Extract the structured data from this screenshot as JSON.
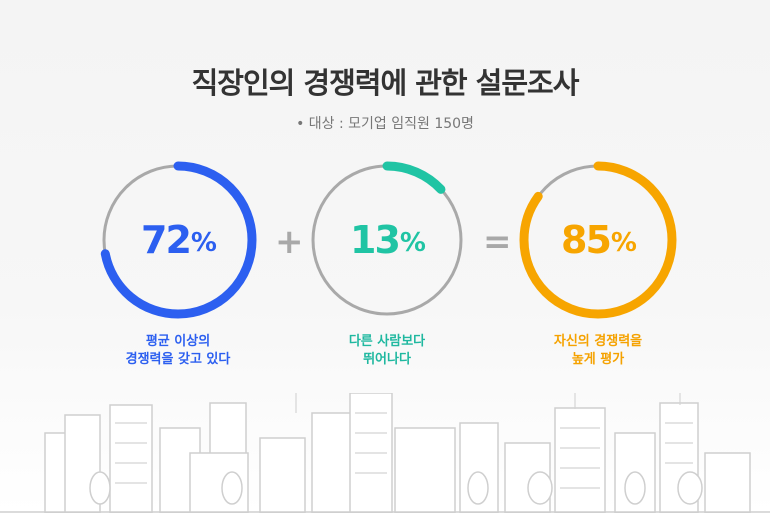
{
  "title": "직장인의 경쟁력에 관한 설문조사",
  "subtitle": "• 대상 : 모기업 임직원 150명",
  "stats": [
    {
      "value": "72",
      "unit": "%",
      "fraction": 0.72,
      "color": "#2c5ff0",
      "caption_line1": "평균 이상의",
      "caption_line2": "경쟁력을 갖고 있다"
    },
    {
      "value": "13",
      "unit": "%",
      "fraction": 0.13,
      "color": "#20c4a4",
      "caption_line1": "다른 사람보다",
      "caption_line2": "뛰어나다"
    },
    {
      "value": "85",
      "unit": "%",
      "fraction": 0.85,
      "color": "#f7a500",
      "caption_line1": "자신의 경쟁력을",
      "caption_line2": "높게 평가"
    }
  ],
  "operators": {
    "plus": "+",
    "equals": "="
  },
  "colors": {
    "track": "#a9a9a9",
    "title": "#333333",
    "city": "#cfcfcf"
  }
}
